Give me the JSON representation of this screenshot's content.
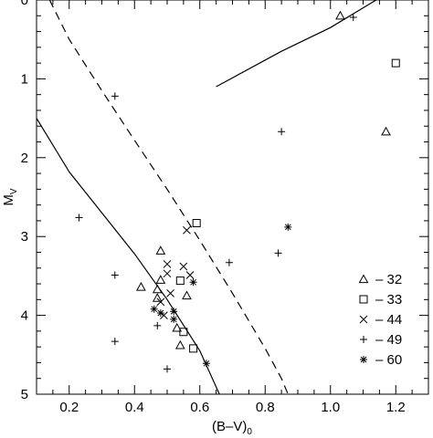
{
  "chart_data": {
    "type": "scatter",
    "title": "",
    "xlabel_main": "(B–V)",
    "xlabel_sub": "0",
    "ylabel_main": "M",
    "ylabel_sub": "V",
    "xlim": [
      0.1,
      1.3
    ],
    "ylim": [
      5,
      0
    ],
    "y_inverted": true,
    "grid": false,
    "x_ticks": [
      0.2,
      0.4,
      0.6,
      0.8,
      1.0,
      1.2
    ],
    "x_tick_labels": [
      "0.2",
      "0.4",
      "0.6",
      "0.8",
      "1.0",
      "1.2"
    ],
    "y_ticks": [
      0,
      1,
      2,
      3,
      4,
      5
    ],
    "y_tick_labels": [
      "0",
      "1",
      "2",
      "3",
      "4",
      "5"
    ],
    "legend_position": "bottom-right",
    "series": [
      {
        "name": "32",
        "marker": "triangle",
        "points": [
          [
            1.03,
            0.2
          ],
          [
            1.17,
            1.67
          ],
          [
            0.48,
            3.18
          ],
          [
            0.42,
            3.64
          ],
          [
            0.48,
            3.55
          ],
          [
            0.47,
            3.67
          ],
          [
            0.47,
            3.78
          ],
          [
            0.56,
            3.75
          ],
          [
            0.53,
            4.16
          ],
          [
            0.54,
            4.38
          ]
        ]
      },
      {
        "name": "33",
        "marker": "square",
        "points": [
          [
            1.2,
            0.8
          ],
          [
            0.59,
            2.83
          ],
          [
            0.54,
            3.56
          ],
          [
            0.55,
            4.21
          ],
          [
            0.58,
            4.42
          ]
        ]
      },
      {
        "name": "44",
        "marker": "cross",
        "points": [
          [
            0.56,
            2.92
          ],
          [
            0.5,
            3.35
          ],
          [
            0.55,
            3.38
          ],
          [
            0.5,
            3.47
          ],
          [
            0.57,
            3.49
          ],
          [
            0.51,
            3.72
          ],
          [
            0.48,
            3.83
          ],
          [
            0.49,
            4.0
          ]
        ]
      },
      {
        "name": "49",
        "marker": "plus",
        "points": [
          [
            1.07,
            0.22
          ],
          [
            0.34,
            1.22
          ],
          [
            0.85,
            1.67
          ],
          [
            0.23,
            2.76
          ],
          [
            0.34,
            3.49
          ],
          [
            0.69,
            3.33
          ],
          [
            0.84,
            3.21
          ],
          [
            0.47,
            4.13
          ],
          [
            0.34,
            4.33
          ],
          [
            0.5,
            4.68
          ]
        ]
      },
      {
        "name": "60",
        "marker": "asterisk",
        "points": [
          [
            0.87,
            2.88
          ],
          [
            0.58,
            3.58
          ],
          [
            0.46,
            3.92
          ],
          [
            0.52,
            3.95
          ],
          [
            0.48,
            3.97
          ],
          [
            0.52,
            4.05
          ],
          [
            0.62,
            4.61
          ]
        ]
      }
    ],
    "lines": [
      {
        "style": "solid",
        "points": [
          [
            0.65,
            1.1
          ],
          [
            0.85,
            0.65
          ],
          [
            1.0,
            0.35
          ],
          [
            1.14,
            0.0
          ]
        ]
      },
      {
        "style": "solid",
        "points": [
          [
            0.1,
            1.5
          ],
          [
            0.2,
            2.18
          ],
          [
            0.3,
            2.7
          ],
          [
            0.4,
            3.22
          ],
          [
            0.5,
            3.8
          ],
          [
            0.6,
            4.45
          ],
          [
            0.66,
            5.0
          ]
        ]
      },
      {
        "style": "dashed",
        "points": [
          [
            0.14,
            0.0
          ],
          [
            0.2,
            0.5
          ],
          [
            0.3,
            1.15
          ],
          [
            0.4,
            1.78
          ],
          [
            0.5,
            2.4
          ],
          [
            0.6,
            3.05
          ],
          [
            0.7,
            3.72
          ],
          [
            0.8,
            4.42
          ],
          [
            0.85,
            4.8
          ],
          [
            0.87,
            5.0
          ]
        ]
      }
    ]
  },
  "legend": {
    "dash": "–",
    "entries": [
      "32",
      "33",
      "44",
      "49",
      "60"
    ]
  }
}
